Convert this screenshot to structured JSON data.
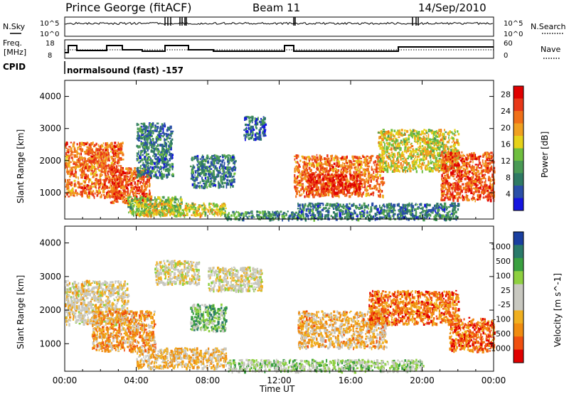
{
  "header": {
    "station": "Prince George (fitACF)",
    "beam": "Beam 11",
    "date": "14/Sep/2010"
  },
  "panels": {
    "nsky_label": "N.Sky",
    "nsky_ticks": [
      "10^5",
      "10^0"
    ],
    "nsearch_label": "N.Search",
    "nsearch_ticks": [
      "10^5",
      "10^0"
    ],
    "freq_label_line1": "Freq.",
    "freq_label_line2": "[MHz]",
    "freq_ticks": [
      "18",
      "8"
    ],
    "nave_label": "Nave",
    "nave_ticks": [
      "60",
      "0"
    ],
    "cpid_label": "CPID",
    "cpid_value": "normalsound (fast) -157"
  },
  "colors": {
    "power_scale": [
      "#1515e0",
      "#2a4fa8",
      "#2f7a64",
      "#4a9a55",
      "#6fbf3f",
      "#e6d21a",
      "#f0a020",
      "#f07018",
      "#e83818",
      "#e00000"
    ],
    "velocity_scale": [
      "#e00000",
      "#f05010",
      "#f08c10",
      "#f0b020",
      "#c8c8c0",
      "#c8c8c0",
      "#8ed040",
      "#3aa040",
      "#2a7a6a",
      "#1a3fa0"
    ]
  },
  "chart_data": [
    {
      "type": "heatmap",
      "title": "",
      "xlabel": "",
      "ylabel": "Slant Range [km]",
      "x_ticks": [
        "00:00",
        "04:00",
        "08:00",
        "12:00",
        "16:00",
        "20:00",
        "00:00"
      ],
      "y_ticks": [
        "1000",
        "2000",
        "3000",
        "4000"
      ],
      "xlim_hours": [
        0,
        24
      ],
      "ylim_km": [
        180,
        4500
      ],
      "colorbar": {
        "label": "Power [dB]",
        "ticks": [
          "4",
          "8",
          "12",
          "16",
          "20",
          "24",
          "28"
        ],
        "range": [
          0,
          30
        ]
      },
      "regions": [
        {
          "t0": 0.0,
          "t1": 3.2,
          "r0": 900,
          "r1": 2600,
          "level": 0.75
        },
        {
          "t0": 2.5,
          "t1": 4.8,
          "r0": 700,
          "r1": 1800,
          "level": 0.8
        },
        {
          "t0": 3.5,
          "t1": 6.5,
          "r0": 350,
          "r1": 900,
          "level": 0.45
        },
        {
          "t0": 4.0,
          "t1": 9.0,
          "r0": 300,
          "r1": 700,
          "level": 0.55
        },
        {
          "t0": 9.0,
          "t1": 13.0,
          "r0": 200,
          "r1": 450,
          "level": 0.3
        },
        {
          "t0": 4.0,
          "t1": 6.0,
          "r0": 1500,
          "r1": 3200,
          "level": 0.25
        },
        {
          "t0": 7.0,
          "t1": 9.5,
          "r0": 1200,
          "r1": 2200,
          "level": 0.25
        },
        {
          "t0": 10.0,
          "t1": 11.2,
          "r0": 2700,
          "r1": 3400,
          "level": 0.2
        },
        {
          "t0": 12.8,
          "t1": 17.8,
          "r0": 900,
          "r1": 2200,
          "level": 0.75
        },
        {
          "t0": 13.5,
          "t1": 16.5,
          "r0": 1000,
          "r1": 1600,
          "level": 0.9
        },
        {
          "t0": 17.5,
          "t1": 22.0,
          "r0": 1700,
          "r1": 3000,
          "level": 0.55
        },
        {
          "t0": 21.0,
          "t1": 24.0,
          "r0": 800,
          "r1": 2300,
          "level": 0.8
        },
        {
          "t0": 13.0,
          "t1": 22.0,
          "r0": 200,
          "r1": 700,
          "level": 0.25
        }
      ]
    },
    {
      "type": "heatmap",
      "title": "",
      "xlabel": "Time UT",
      "ylabel": "Slant Range [km]",
      "x_ticks": [
        "00:00",
        "04:00",
        "08:00",
        "12:00",
        "16:00",
        "20:00",
        "00:00"
      ],
      "y_ticks": [
        "1000",
        "2000",
        "3000",
        "4000"
      ],
      "xlim_hours": [
        0,
        24
      ],
      "ylim_km": [
        180,
        4500
      ],
      "colorbar": {
        "label": "Velocity [m s^-1]",
        "ticks": [
          "1000",
          "500",
          "100",
          "25",
          "-25",
          "-100",
          "-500",
          "-1000"
        ],
        "range": [
          -1000,
          1000
        ]
      },
      "regions": [
        {
          "t0": 0.0,
          "t1": 3.5,
          "r0": 1600,
          "r1": 2900,
          "level": 0.45
        },
        {
          "t0": 1.5,
          "t1": 5.0,
          "r0": 800,
          "r1": 2000,
          "level": 0.3
        },
        {
          "t0": 4.0,
          "t1": 9.0,
          "r0": 300,
          "r1": 900,
          "level": 0.38
        },
        {
          "t0": 5.0,
          "t1": 7.5,
          "r0": 2800,
          "r1": 3500,
          "level": 0.48
        },
        {
          "t0": 8.0,
          "t1": 11.0,
          "r0": 2600,
          "r1": 3300,
          "level": 0.48
        },
        {
          "t0": 7.0,
          "t1": 9.0,
          "r0": 1400,
          "r1": 2200,
          "level": 0.7
        },
        {
          "t0": 13.0,
          "t1": 18.0,
          "r0": 900,
          "r1": 2000,
          "level": 0.35
        },
        {
          "t0": 17.0,
          "t1": 22.0,
          "r0": 1600,
          "r1": 2600,
          "level": 0.22
        },
        {
          "t0": 21.5,
          "t1": 24.0,
          "r0": 800,
          "r1": 1800,
          "level": 0.2
        },
        {
          "t0": 9.0,
          "t1": 20.0,
          "r0": 200,
          "r1": 550,
          "level": 0.6
        }
      ]
    }
  ]
}
